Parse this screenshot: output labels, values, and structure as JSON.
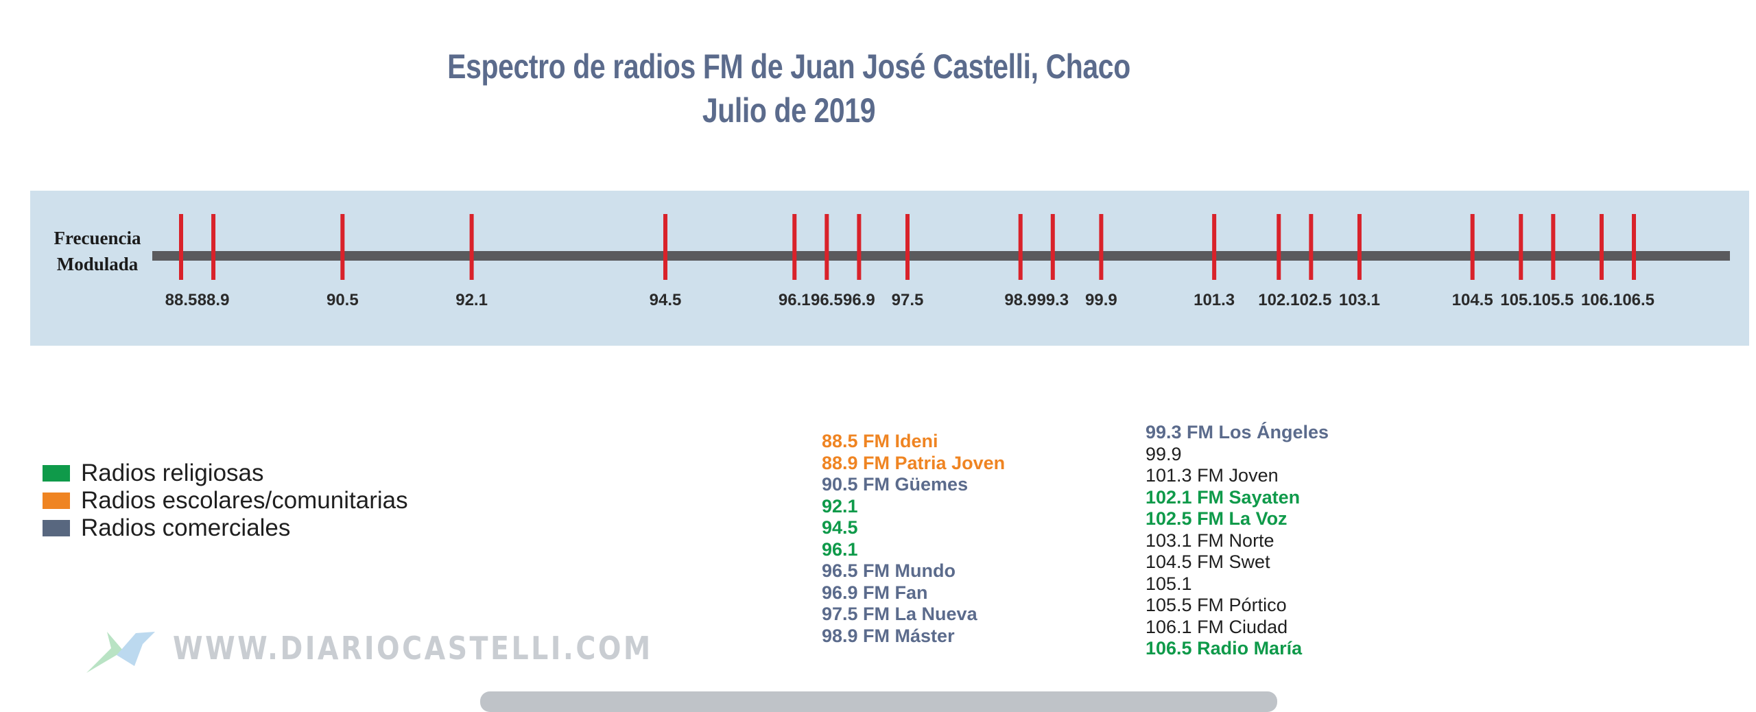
{
  "chart_data": {
    "type": "scatter",
    "title": "Espectro de radios FM de Juan José Castelli, Chaco",
    "subtitle": "Julio de 2019",
    "ylabel": "Frecuencia Modulada",
    "x": [
      88.5,
      88.9,
      90.5,
      92.1,
      94.5,
      96.1,
      96.5,
      96.9,
      97.5,
      98.9,
      99.3,
      99.9,
      101.3,
      102.1,
      102.5,
      103.1,
      104.5,
      105.1,
      105.5,
      106.1,
      106.5
    ],
    "tick_labels": [
      "88.5",
      "88.9",
      "90.5",
      "92.1",
      "94.5",
      "96.1",
      "96.5",
      "96.9",
      "97.5",
      "98.9",
      "99.3",
      "99.9",
      "101.3",
      "102.1",
      "102.5",
      "103.1",
      "104.5",
      "105.1",
      "105.5",
      "106.1",
      "106.5"
    ],
    "marker_color": "#d9222a",
    "axis_color": "#5a5a5d",
    "background_color": "#cfe0ec"
  },
  "legend": [
    {
      "label": "Radios religiosas",
      "color": "#0f9a4a"
    },
    {
      "label": "Radios escolares/comunitarias",
      "color": "#ef8422"
    },
    {
      "label": "Radios comerciales",
      "color": "#58677f"
    }
  ],
  "colors": {
    "religious": "#0f9a4a",
    "community": "#ef8422",
    "commercial": "#5b6b8c",
    "unclassified": "#1f1f1f"
  },
  "stations_col1": [
    {
      "text": "88.5 FM Ideni",
      "color": "#ef8422",
      "bold": true
    },
    {
      "text": "88.9 FM  Patria Joven",
      "color": "#ef8422",
      "bold": true
    },
    {
      "text": "90.5 FM Güemes",
      "color": "#5b6b8c",
      "bold": true
    },
    {
      "text": "92.1",
      "color": "#0f9a4a",
      "bold": true
    },
    {
      "text": "94.5",
      "color": "#0f9a4a",
      "bold": true
    },
    {
      "text": "96.1",
      "color": "#0f9a4a",
      "bold": true
    },
    {
      "text": "96.5 FM Mundo",
      "color": "#5b6b8c",
      "bold": true
    },
    {
      "text": "96.9 FM Fan",
      "color": "#5b6b8c",
      "bold": true
    },
    {
      "text": "97.5 FM La Nueva",
      "color": "#5b6b8c",
      "bold": true
    },
    {
      "text": "98.9 FM Máster",
      "color": "#5b6b8c",
      "bold": true
    }
  ],
  "stations_col2": [
    {
      "text": "99.3 FM Los Ángeles",
      "color": "#5b6b8c",
      "bold": true
    },
    {
      "text": "99.9",
      "color": "#1f1f1f",
      "bold": false
    },
    {
      "text": "101.3 FM Joven",
      "color": "#1f1f1f",
      "bold": false
    },
    {
      "text": "102.1 FM Sayaten",
      "color": "#0f9a4a",
      "bold": true
    },
    {
      "text": "102.5 FM La Voz",
      "color": "#0f9a4a",
      "bold": true
    },
    {
      "text": "103.1 FM Norte",
      "color": "#1f1f1f",
      "bold": false
    },
    {
      "text": "104.5 FM Swet",
      "color": "#1f1f1f",
      "bold": false
    },
    {
      "text": "105.1",
      "color": "#1f1f1f",
      "bold": false
    },
    {
      "text": "105.5 FM Pórtico",
      "color": "#1f1f1f",
      "bold": false
    },
    {
      "text": "106.1 FM Ciudad",
      "color": "#1f1f1f",
      "bold": false
    },
    {
      "text": "106.5 Radio María",
      "color": "#0f9a4a",
      "bold": true
    }
  ],
  "watermark": "WWW.DIARIOCASTELLI.COM"
}
